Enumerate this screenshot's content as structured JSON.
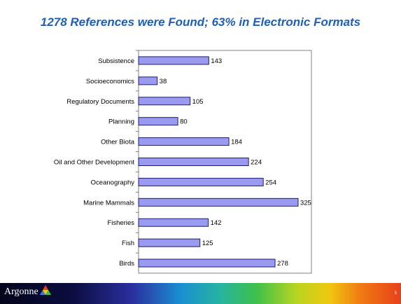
{
  "chart_data": {
    "type": "bar",
    "orientation": "horizontal",
    "title": "1278 References were Found; 63% in Electronic Formats",
    "categories": [
      "Subsistence",
      "Socioeconomics",
      "Regulatory Documents",
      "Planning",
      "Other Biota",
      "Oil and Other Development",
      "Oceanography",
      "Marine Mammals",
      "Fisheries",
      "Fish",
      "Birds"
    ],
    "values": [
      143,
      38,
      105,
      80,
      184,
      224,
      254,
      325,
      142,
      125,
      278
    ],
    "xlim": [
      0,
      350
    ],
    "grid": false,
    "legend": "none",
    "colors": {
      "bar_fill": "#9a9af0",
      "bar_stroke": "#1c1c6e",
      "title": "#1f5fb5"
    }
  },
  "footer": {
    "logo_text": "Argonne",
    "page_number": "5"
  }
}
